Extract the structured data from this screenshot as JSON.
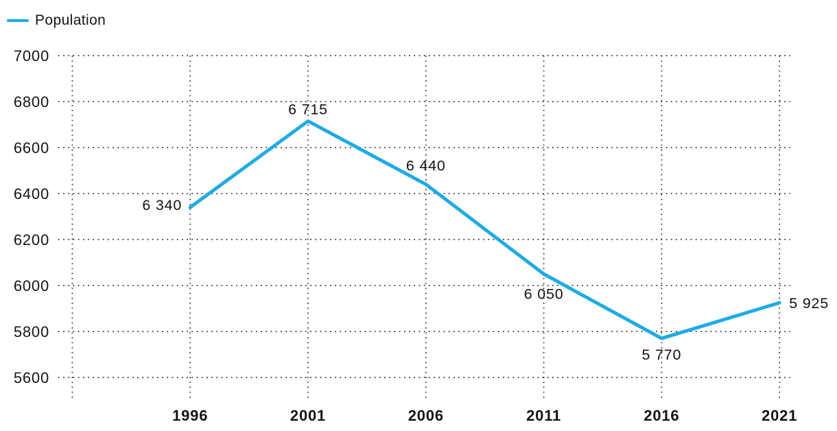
{
  "legend": {
    "series_label": "Population"
  },
  "colors": {
    "line": "#1FABE3",
    "text": "#141414",
    "grid": "#2b2b2b",
    "background": "#ffffff"
  },
  "chart_data": {
    "type": "line",
    "title": "",
    "xlabel": "",
    "ylabel": "",
    "categories": [
      "1996",
      "2001",
      "2006",
      "2011",
      "2016",
      "2021"
    ],
    "series": [
      {
        "name": "Population",
        "values": [
          6340,
          6715,
          6440,
          6050,
          5770,
          5925
        ],
        "point_labels": [
          "6 340",
          "6 715",
          "6 440",
          "6 050",
          "5 770",
          "5 925"
        ],
        "color": "#1FABE3"
      }
    ],
    "ylim": [
      5600,
      7000
    ],
    "yticks": [
      7000,
      6800,
      6600,
      6400,
      6200,
      6000,
      5800,
      5600
    ],
    "grid": "dotted",
    "legend_position": "top-left"
  }
}
